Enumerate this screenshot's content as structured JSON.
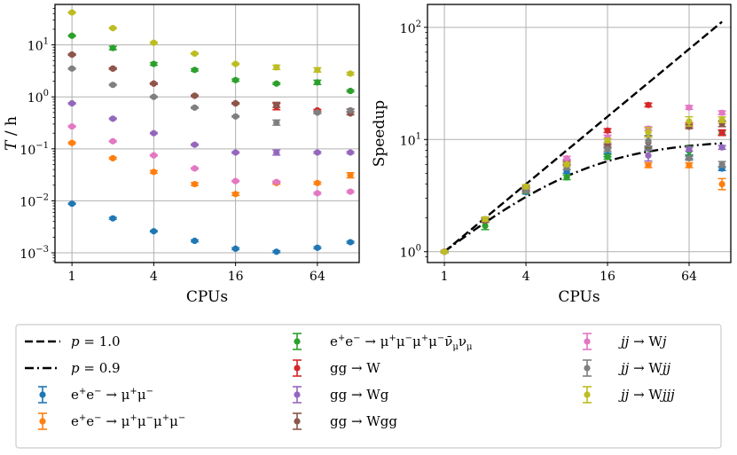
{
  "chart_data": [
    {
      "type": "scatter",
      "panel": "left",
      "xscale": "log2",
      "yscale": "log10",
      "xlabel": "CPUs",
      "ylabel": "T / h",
      "ylabel_main": "T",
      "ylabel_unit": " / h",
      "xlim": [
        0.75,
        130
      ],
      "ylim": [
        0.00065,
        60
      ],
      "xticks": [
        {
          "v": 1,
          "label": "1"
        },
        {
          "v": 4,
          "label": "4"
        },
        {
          "v": 16,
          "label": "16"
        },
        {
          "v": 64,
          "label": "64"
        }
      ],
      "yticks": [
        {
          "v": 0.001,
          "base": "10",
          "exp": "−3"
        },
        {
          "v": 0.01,
          "base": "10",
          "exp": "−2"
        },
        {
          "v": 0.1,
          "base": "10",
          "exp": "−1"
        },
        {
          "v": 1,
          "base": "10",
          "exp": "0"
        },
        {
          "v": 10,
          "base": "10",
          "exp": "1"
        }
      ],
      "grid": true,
      "x": [
        1,
        2,
        4,
        8,
        16,
        32,
        64,
        112
      ],
      "series": [
        {
          "key": "mm",
          "values": [
            0.0088,
            0.0046,
            0.0026,
            0.0017,
            0.0012,
            0.00105,
            0.00125,
            0.0016
          ],
          "errs": [
            0.03,
            0.04,
            0.03,
            0.04,
            0.04,
            0.04,
            0.04,
            0.04
          ]
        },
        {
          "key": "mmmm",
          "values": [
            0.13,
            0.066,
            0.036,
            0.021,
            0.0135,
            0.022,
            0.022,
            0.031
          ],
          "errs": [
            0.04,
            0.04,
            0.06,
            0.06,
            0.06,
            0.05,
            0.05,
            0.12
          ]
        },
        {
          "key": "mmmmvv",
          "values": [
            15.0,
            8.7,
            4.3,
            3.3,
            2.1,
            1.8,
            1.9,
            1.3
          ],
          "errs": [
            0.03,
            0.08,
            0.06,
            0.05,
            0.05,
            0.04,
            0.1,
            0.04
          ]
        },
        {
          "key": "ggW",
          "values": [
            6.5,
            3.5,
            1.8,
            1.05,
            0.75,
            0.65,
            0.55,
            0.55
          ],
          "errs": [
            0.03,
            0.03,
            0.03,
            0.03,
            0.03,
            0.15,
            0.04,
            0.06
          ]
        },
        {
          "key": "ggWg",
          "values": [
            0.75,
            0.38,
            0.2,
            0.12,
            0.085,
            0.085,
            0.085,
            0.085
          ],
          "errs": [
            0.03,
            0.03,
            0.03,
            0.03,
            0.03,
            0.12,
            0.04,
            0.04
          ]
        },
        {
          "key": "ggWgg",
          "values": [
            6.5,
            3.5,
            1.8,
            1.05,
            0.75,
            0.7,
            0.5,
            0.48
          ],
          "errs": [
            0.03,
            0.03,
            0.03,
            0.03,
            0.03,
            0.12,
            0.04,
            0.06
          ]
        },
        {
          "key": "jjWj",
          "values": [
            0.27,
            0.14,
            0.075,
            0.042,
            0.024,
            0.023,
            0.014,
            0.015
          ],
          "errs": [
            0.03,
            0.03,
            0.03,
            0.03,
            0.03,
            0.04,
            0.04,
            0.04
          ]
        },
        {
          "key": "jjWjj",
          "values": [
            3.5,
            1.7,
            1.0,
            0.62,
            0.42,
            0.32,
            0.5,
            0.55
          ],
          "errs": [
            0.03,
            0.03,
            0.03,
            0.03,
            0.03,
            0.12,
            0.04,
            0.06
          ]
        },
        {
          "key": "jjWjjj",
          "values": [
            42,
            21,
            11,
            6.8,
            4.3,
            3.7,
            3.3,
            2.8
          ],
          "errs": [
            0.03,
            0.03,
            0.03,
            0.03,
            0.03,
            0.1,
            0.1,
            0.06
          ]
        }
      ]
    },
    {
      "type": "scatter",
      "panel": "right",
      "xscale": "log2",
      "yscale": "log10",
      "xlabel": "CPUs",
      "ylabel": "Speedup",
      "xlim": [
        0.75,
        130
      ],
      "ylim": [
        0.8,
        160
      ],
      "xticks": [
        {
          "v": 1,
          "label": "1"
        },
        {
          "v": 4,
          "label": "4"
        },
        {
          "v": 16,
          "label": "16"
        },
        {
          "v": 64,
          "label": "64"
        }
      ],
      "yticks": [
        {
          "v": 1,
          "base": "10",
          "exp": "0"
        },
        {
          "v": 10,
          "base": "10",
          "exp": "1"
        },
        {
          "v": 100,
          "base": "10",
          "exp": "2"
        }
      ],
      "grid": true,
      "x": [
        1,
        2,
        4,
        8,
        16,
        32,
        64,
        112
      ],
      "lines": [
        {
          "key": "p10",
          "p": 1.0
        },
        {
          "key": "p09",
          "p": 0.9
        }
      ],
      "series": [
        {
          "key": "mm",
          "values": [
            1,
            1.9,
            3.4,
            5.2,
            7.3,
            8.4,
            7.0,
            5.5
          ],
          "errs": [
            0.02,
            0.04,
            0.04,
            0.04,
            0.04,
            0.04,
            0.04,
            0.04
          ]
        },
        {
          "key": "mmmm",
          "values": [
            1,
            1.95,
            3.6,
            6.2,
            9.6,
            5.9,
            5.9,
            4.0
          ],
          "errs": [
            0.02,
            0.04,
            0.04,
            0.06,
            0.06,
            0.05,
            0.05,
            0.12
          ]
        },
        {
          "key": "mmmmvv",
          "values": [
            1,
            1.7,
            3.5,
            4.6,
            7.0,
            8.3,
            7.9,
            11.5
          ],
          "errs": [
            0.02,
            0.08,
            0.06,
            0.05,
            0.05,
            0.04,
            0.1,
            0.04
          ]
        },
        {
          "key": "ggW",
          "values": [
            1,
            1.9,
            3.6,
            6.2,
            12.0,
            20.3,
            13.5,
            11.5
          ],
          "errs": [
            0.02,
            0.04,
            0.04,
            0.04,
            0.04,
            0.04,
            0.04,
            0.06
          ]
        },
        {
          "key": "ggWg",
          "values": [
            1,
            1.95,
            3.7,
            6.4,
            9.0,
            7.2,
            8.2,
            8.5
          ],
          "errs": [
            0.02,
            0.04,
            0.04,
            0.04,
            0.04,
            0.12,
            0.04,
            0.04
          ]
        },
        {
          "key": "ggWgg",
          "values": [
            1,
            1.9,
            3.6,
            6.1,
            8.7,
            9.4,
            13.0,
            13.8
          ],
          "errs": [
            0.02,
            0.04,
            0.04,
            0.04,
            0.04,
            0.12,
            0.04,
            0.06
          ]
        },
        {
          "key": "jjWj",
          "values": [
            1,
            1.95,
            3.8,
            6.8,
            10.5,
            12.5,
            19.3,
            17.3
          ],
          "errs": [
            0.02,
            0.04,
            0.04,
            0.04,
            0.04,
            0.04,
            0.04,
            0.04
          ]
        },
        {
          "key": "jjWjj",
          "values": [
            1,
            1.95,
            3.5,
            5.6,
            8.2,
            9.7,
            6.8,
            6.0
          ],
          "errs": [
            0.02,
            0.04,
            0.04,
            0.04,
            0.04,
            0.12,
            0.04,
            0.06
          ]
        },
        {
          "key": "jjWjjj",
          "values": [
            1,
            1.95,
            3.8,
            6.0,
            9.8,
            11.6,
            14.5,
            15.0
          ],
          "errs": [
            0.02,
            0.04,
            0.04,
            0.04,
            0.04,
            0.1,
            0.1,
            0.06
          ]
        }
      ]
    }
  ],
  "legend": {
    "placement": "bottom",
    "entries": [
      {
        "key": "p10",
        "kind": "line",
        "dash": "dashed",
        "segments": [
          {
            "t": "p",
            "i": true
          },
          {
            "t": " = 1.0"
          }
        ]
      },
      {
        "key": "p09",
        "kind": "line",
        "dash": "dashdot",
        "segments": [
          {
            "t": "p",
            "i": true
          },
          {
            "t": " = 0.9"
          }
        ]
      },
      {
        "key": "mm",
        "kind": "marker",
        "color": "#1f77b4",
        "segments": [
          {
            "t": "e"
          },
          {
            "t": "+",
            "s": "sup"
          },
          {
            "t": "e"
          },
          {
            "t": "−",
            "s": "sup"
          },
          {
            "t": " → μ"
          },
          {
            "t": "+",
            "s": "sup"
          },
          {
            "t": "μ"
          },
          {
            "t": "−",
            "s": "sup"
          }
        ]
      },
      {
        "key": "mmmm",
        "kind": "marker",
        "color": "#ff7f0e",
        "segments": [
          {
            "t": "e"
          },
          {
            "t": "+",
            "s": "sup"
          },
          {
            "t": "e"
          },
          {
            "t": "−",
            "s": "sup"
          },
          {
            "t": " → μ"
          },
          {
            "t": "+",
            "s": "sup"
          },
          {
            "t": "μ"
          },
          {
            "t": "−",
            "s": "sup"
          },
          {
            "t": "μ"
          },
          {
            "t": "+",
            "s": "sup"
          },
          {
            "t": "μ"
          },
          {
            "t": "−",
            "s": "sup"
          }
        ]
      },
      {
        "key": "mmmmvv",
        "kind": "marker",
        "color": "#2ca02c",
        "segments": [
          {
            "t": "e"
          },
          {
            "t": "+",
            "s": "sup"
          },
          {
            "t": "e"
          },
          {
            "t": "−",
            "s": "sup"
          },
          {
            "t": " → μ"
          },
          {
            "t": "+",
            "s": "sup"
          },
          {
            "t": "μ"
          },
          {
            "t": "−",
            "s": "sup"
          },
          {
            "t": "μ"
          },
          {
            "t": "+",
            "s": "sup"
          },
          {
            "t": "μ"
          },
          {
            "t": "−",
            "s": "sup"
          },
          {
            "t": "ν̄"
          },
          {
            "t": "μ",
            "s": "sub"
          },
          {
            "t": "ν"
          },
          {
            "t": "μ",
            "s": "sub"
          }
        ]
      },
      {
        "key": "ggW",
        "kind": "marker",
        "color": "#d62728",
        "segments": [
          {
            "t": "gg → W"
          }
        ]
      },
      {
        "key": "ggWg",
        "kind": "marker",
        "color": "#9467bd",
        "segments": [
          {
            "t": "gg → Wg"
          }
        ]
      },
      {
        "key": "ggWgg",
        "kind": "marker",
        "color": "#8c564b",
        "segments": [
          {
            "t": "gg → Wgg"
          }
        ]
      },
      {
        "key": "jjWj",
        "kind": "marker",
        "color": "#e377c2",
        "segments": [
          {
            "t": "jj",
            "i": true
          },
          {
            "t": " → W"
          },
          {
            "t": "j",
            "i": true
          }
        ]
      },
      {
        "key": "jjWjj",
        "kind": "marker",
        "color": "#7f7f7f",
        "segments": [
          {
            "t": "jj",
            "i": true
          },
          {
            "t": " → W"
          },
          {
            "t": "jj",
            "i": true
          }
        ]
      },
      {
        "key": "jjWjjj",
        "kind": "marker",
        "color": "#bcbd22",
        "segments": [
          {
            "t": "jj",
            "i": true
          },
          {
            "t": " → W"
          },
          {
            "t": "jjj",
            "i": true
          }
        ]
      }
    ]
  }
}
